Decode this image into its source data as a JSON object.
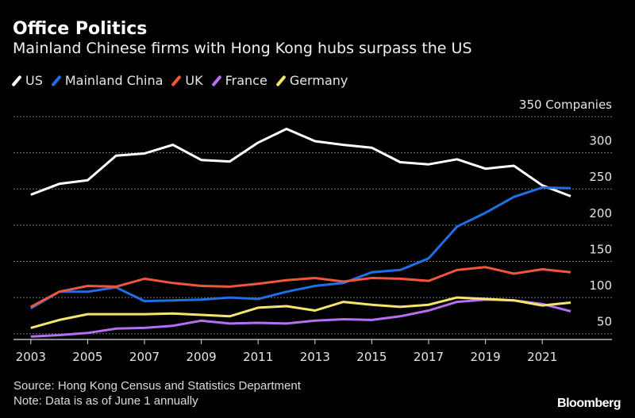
{
  "chart_data": {
    "type": "line",
    "title": "Office Politics",
    "subtitle": "Mainland Chinese firms with Hong Kong hubs surpass the US",
    "ylabel_unit": "Companies",
    "ylim": [
      42,
      350
    ],
    "yticks": [
      50,
      100,
      150,
      200,
      250,
      300,
      350
    ],
    "grid": true,
    "legend_placement": "top-left",
    "x": [
      2003,
      2004,
      2005,
      2006,
      2007,
      2008,
      2009,
      2010,
      2011,
      2012,
      2013,
      2014,
      2015,
      2016,
      2017,
      2018,
      2019,
      2020,
      2021,
      2022
    ],
    "xticks": [
      "2003",
      "2005",
      "2007",
      "2009",
      "2011",
      "2013",
      "2015",
      "2017",
      "2019",
      "2021"
    ],
    "series": [
      {
        "name": "US",
        "color": "#ffffff",
        "values": [
          242,
          257,
          262,
          296,
          299,
          311,
          290,
          288,
          314,
          333,
          316,
          311,
          307,
          287,
          284,
          291,
          278,
          282,
          255,
          240
        ]
      },
      {
        "name": "Mainland China",
        "color": "#1f6fe5",
        "values": [
          85,
          108,
          108,
          114,
          95,
          96,
          97,
          100,
          98,
          108,
          116,
          120,
          135,
          138,
          154,
          198,
          217,
          239,
          252,
          251
        ]
      },
      {
        "name": "UK",
        "color": "#f0573a",
        "values": [
          87,
          108,
          116,
          115,
          126,
          120,
          116,
          115,
          119,
          124,
          127,
          122,
          127,
          126,
          123,
          138,
          142,
          133,
          139,
          135
        ]
      },
      {
        "name": "France",
        "color": "#b66ff0",
        "values": [
          46,
          48,
          51,
          57,
          58,
          61,
          68,
          64,
          65,
          64,
          68,
          70,
          69,
          74,
          82,
          94,
          97,
          96,
          91,
          81
        ]
      },
      {
        "name": "Germany",
        "color": "#f5e56b",
        "values": [
          58,
          69,
          77,
          77,
          77,
          78,
          76,
          74,
          86,
          88,
          82,
          94,
          90,
          87,
          90,
          100,
          98,
          96,
          89,
          93
        ]
      }
    ],
    "source": "Source: Hong Kong Census and Statistics Department",
    "note": "Note: Data is as of June 1 annually",
    "logo": "Bloomberg"
  }
}
